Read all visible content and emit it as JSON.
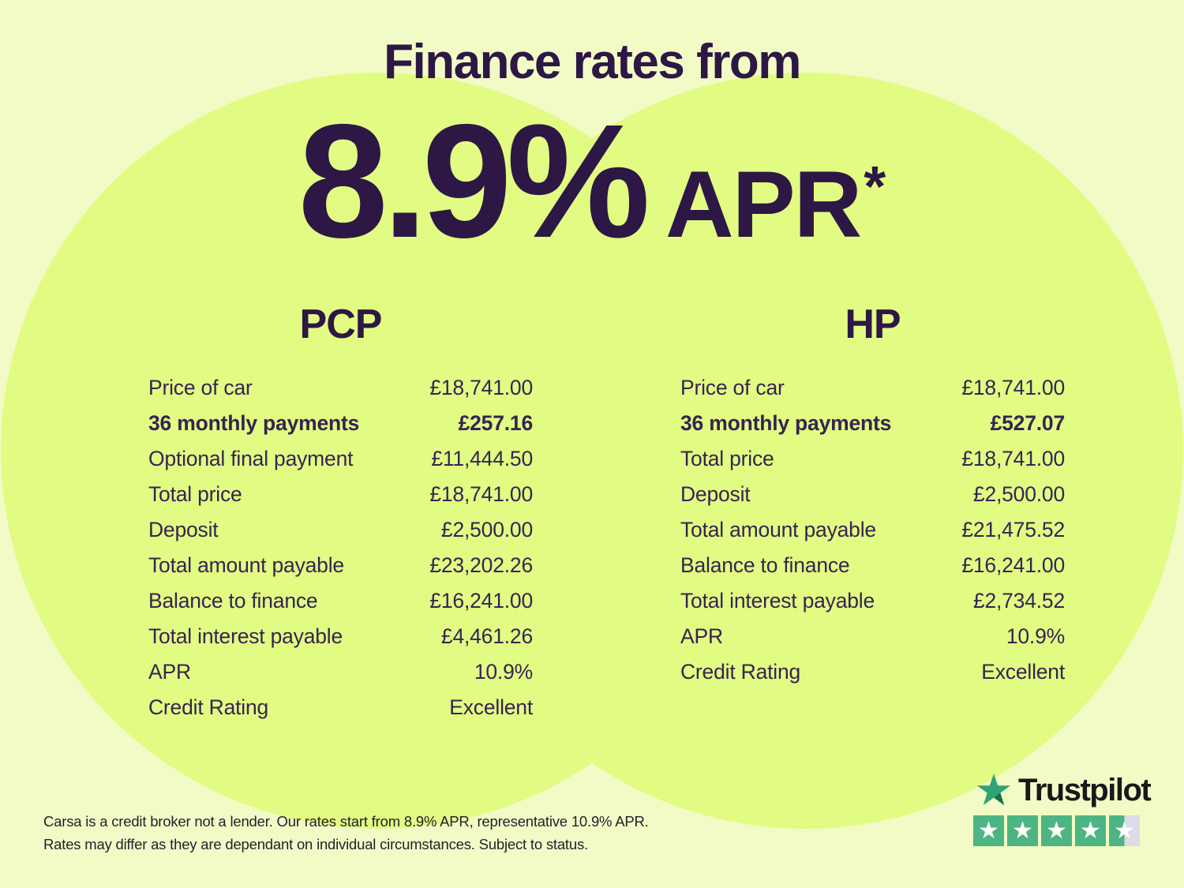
{
  "colors": {
    "background": "#f2fbc6",
    "circle": "#e2fb82",
    "heading_text": "#2d1745",
    "table_text": "#342452",
    "disclaimer_text": "#24212e",
    "trustpilot_green": "#2fa374",
    "trustpilot_green_dark": "#15714b",
    "star_box_green": "#4cb583",
    "star_box_gray": "#dcdce6"
  },
  "header": {
    "title": "Finance rates from",
    "rate": "8.9%",
    "apr": "APR",
    "footnote_marker": "*"
  },
  "tables": {
    "pcp": {
      "title": "PCP",
      "rows": [
        {
          "label": "Price of car",
          "value": "£18,741.00",
          "bold": false
        },
        {
          "label": "36 monthly payments",
          "value": "£257.16",
          "bold": true
        },
        {
          "label": "Optional final payment",
          "value": "£11,444.50",
          "bold": false
        },
        {
          "label": "Total price",
          "value": "£18,741.00",
          "bold": false
        },
        {
          "label": "Deposit",
          "value": "£2,500.00",
          "bold": false
        },
        {
          "label": "Total amount payable",
          "value": "£23,202.26",
          "bold": false
        },
        {
          "label": "Balance to finance",
          "value": "£16,241.00",
          "bold": false
        },
        {
          "label": "Total interest payable",
          "value": "£4,461.26",
          "bold": false
        },
        {
          "label": "APR",
          "value": "10.9%",
          "bold": false
        },
        {
          "label": "Credit Rating",
          "value": "Excellent",
          "bold": false
        }
      ]
    },
    "hp": {
      "title": "HP",
      "rows": [
        {
          "label": "Price of car",
          "value": "£18,741.00",
          "bold": false
        },
        {
          "label": "36 monthly payments",
          "value": "£527.07",
          "bold": true
        },
        {
          "label": "Total price",
          "value": "£18,741.00",
          "bold": false
        },
        {
          "label": "Deposit",
          "value": "£2,500.00",
          "bold": false
        },
        {
          "label": "Total amount payable",
          "value": "£21,475.52",
          "bold": false
        },
        {
          "label": "Balance to finance",
          "value": "£16,241.00",
          "bold": false
        },
        {
          "label": "Total interest payable",
          "value": "£2,734.52",
          "bold": false
        },
        {
          "label": "APR",
          "value": "10.9%",
          "bold": false
        },
        {
          "label": "Credit Rating",
          "value": "Excellent",
          "bold": false
        }
      ]
    }
  },
  "disclaimer": {
    "line1": "Carsa is a credit broker not a lender. Our rates start from 8.9% APR, representative 10.9% APR.",
    "line2": "Rates may differ as they are dependant on individual circumstances. Subject to status."
  },
  "trustpilot": {
    "brand": "Trustpilot",
    "rating": 4.5,
    "max_stars": 5,
    "star_icon": "star-icon"
  }
}
